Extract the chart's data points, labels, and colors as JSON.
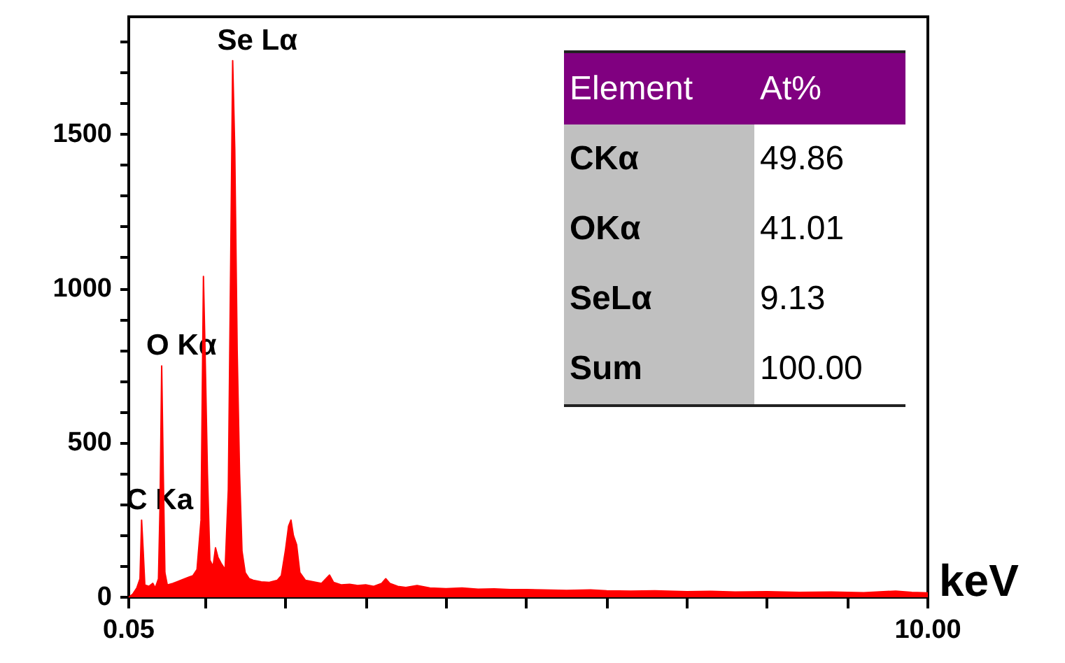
{
  "chart_data": {
    "type": "area",
    "xlabel": "keV",
    "color": "#ff0000",
    "grid": false,
    "marker": "none",
    "xlim": [
      0.05,
      10
    ],
    "xticks": [
      {
        "value": 0.05,
        "label": "0.05"
      },
      {
        "value": 1,
        "label": null
      },
      {
        "value": 2,
        "label": null
      },
      {
        "value": 3,
        "label": null
      },
      {
        "value": 4,
        "label": null
      },
      {
        "value": 5,
        "label": null
      },
      {
        "value": 6,
        "label": null
      },
      {
        "value": 7,
        "label": null
      },
      {
        "value": 8,
        "label": null
      },
      {
        "value": 9,
        "label": null
      },
      {
        "value": 10,
        "label": "10.00"
      }
    ],
    "ylim": [
      0,
      1880
    ],
    "yticks": [
      0,
      {
        "value": 100,
        "label": null
      },
      {
        "value": 200,
        "label": null
      },
      {
        "value": 300,
        "label": null
      },
      {
        "value": 400,
        "label": null
      },
      500,
      {
        "value": 600,
        "label": null
      },
      {
        "value": 700,
        "label": null
      },
      {
        "value": 800,
        "label": null
      },
      {
        "value": 900,
        "label": null
      },
      1000,
      {
        "value": 1100,
        "label": null
      },
      {
        "value": 1200,
        "label": null
      },
      {
        "value": 1300,
        "label": null
      },
      {
        "value": 1400,
        "label": null
      },
      1500,
      {
        "value": 1600,
        "label": null
      },
      {
        "value": 1700,
        "label": null
      },
      {
        "value": 1800,
        "label": null
      }
    ],
    "x": [
      0.05,
      0.1,
      0.15,
      0.19,
      0.21,
      0.23,
      0.25,
      0.3,
      0.35,
      0.38,
      0.42,
      0.44,
      0.46,
      0.48,
      0.5,
      0.53,
      0.6,
      0.7,
      0.8,
      0.85,
      0.9,
      0.95,
      0.98,
      1.0,
      1.03,
      1.06,
      1.1,
      1.13,
      1.16,
      1.2,
      1.25,
      1.29,
      1.32,
      1.344,
      1.37,
      1.4,
      1.43,
      1.46,
      1.5,
      1.55,
      1.6,
      1.7,
      1.8,
      1.9,
      1.95,
      2.0,
      2.04,
      2.07,
      2.1,
      2.14,
      2.18,
      2.25,
      2.35,
      2.45,
      2.55,
      2.6,
      2.7,
      2.8,
      2.9,
      3.0,
      3.1,
      3.2,
      3.25,
      3.3,
      3.4,
      3.5,
      3.64,
      3.8,
      4.0,
      4.2,
      4.4,
      4.6,
      4.8,
      5.0,
      5.2,
      5.5,
      5.8,
      6.0,
      6.3,
      6.6,
      7.0,
      7.3,
      7.6,
      8.0,
      8.4,
      8.8,
      9.2,
      9.6,
      9.8,
      10.0
    ],
    "values": [
      0,
      10,
      30,
      60,
      250,
      150,
      40,
      35,
      45,
      30,
      60,
      300,
      749,
      400,
      80,
      40,
      45,
      55,
      65,
      70,
      90,
      250,
      1039,
      800,
      400,
      120,
      100,
      160,
      130,
      110,
      90,
      350,
      1100,
      1738,
      1450,
      800,
      400,
      150,
      80,
      60,
      55,
      50,
      48,
      55,
      70,
      150,
      230,
      250,
      200,
      170,
      80,
      55,
      50,
      45,
      72,
      48,
      40,
      42,
      38,
      40,
      35,
      45,
      60,
      45,
      35,
      32,
      38,
      30,
      28,
      30,
      26,
      27,
      25,
      25,
      24,
      22,
      24,
      21,
      20,
      21,
      18,
      19,
      17,
      18,
      16,
      17,
      15,
      20,
      16,
      14
    ],
    "annotations": [
      {
        "text": "Se Lα",
        "x": 1.344,
        "y": 1738
      },
      {
        "text": "O Kα",
        "x": 0.46,
        "y": 749
      },
      {
        "text": "C Ka",
        "x": 0.21,
        "y": 250
      },
      "Element",
      "At%",
      "CKα",
      "49.86",
      "OKα",
      "41.01",
      "SeLα",
      "9.13",
      "Sum",
      "100.00"
    ]
  }
}
